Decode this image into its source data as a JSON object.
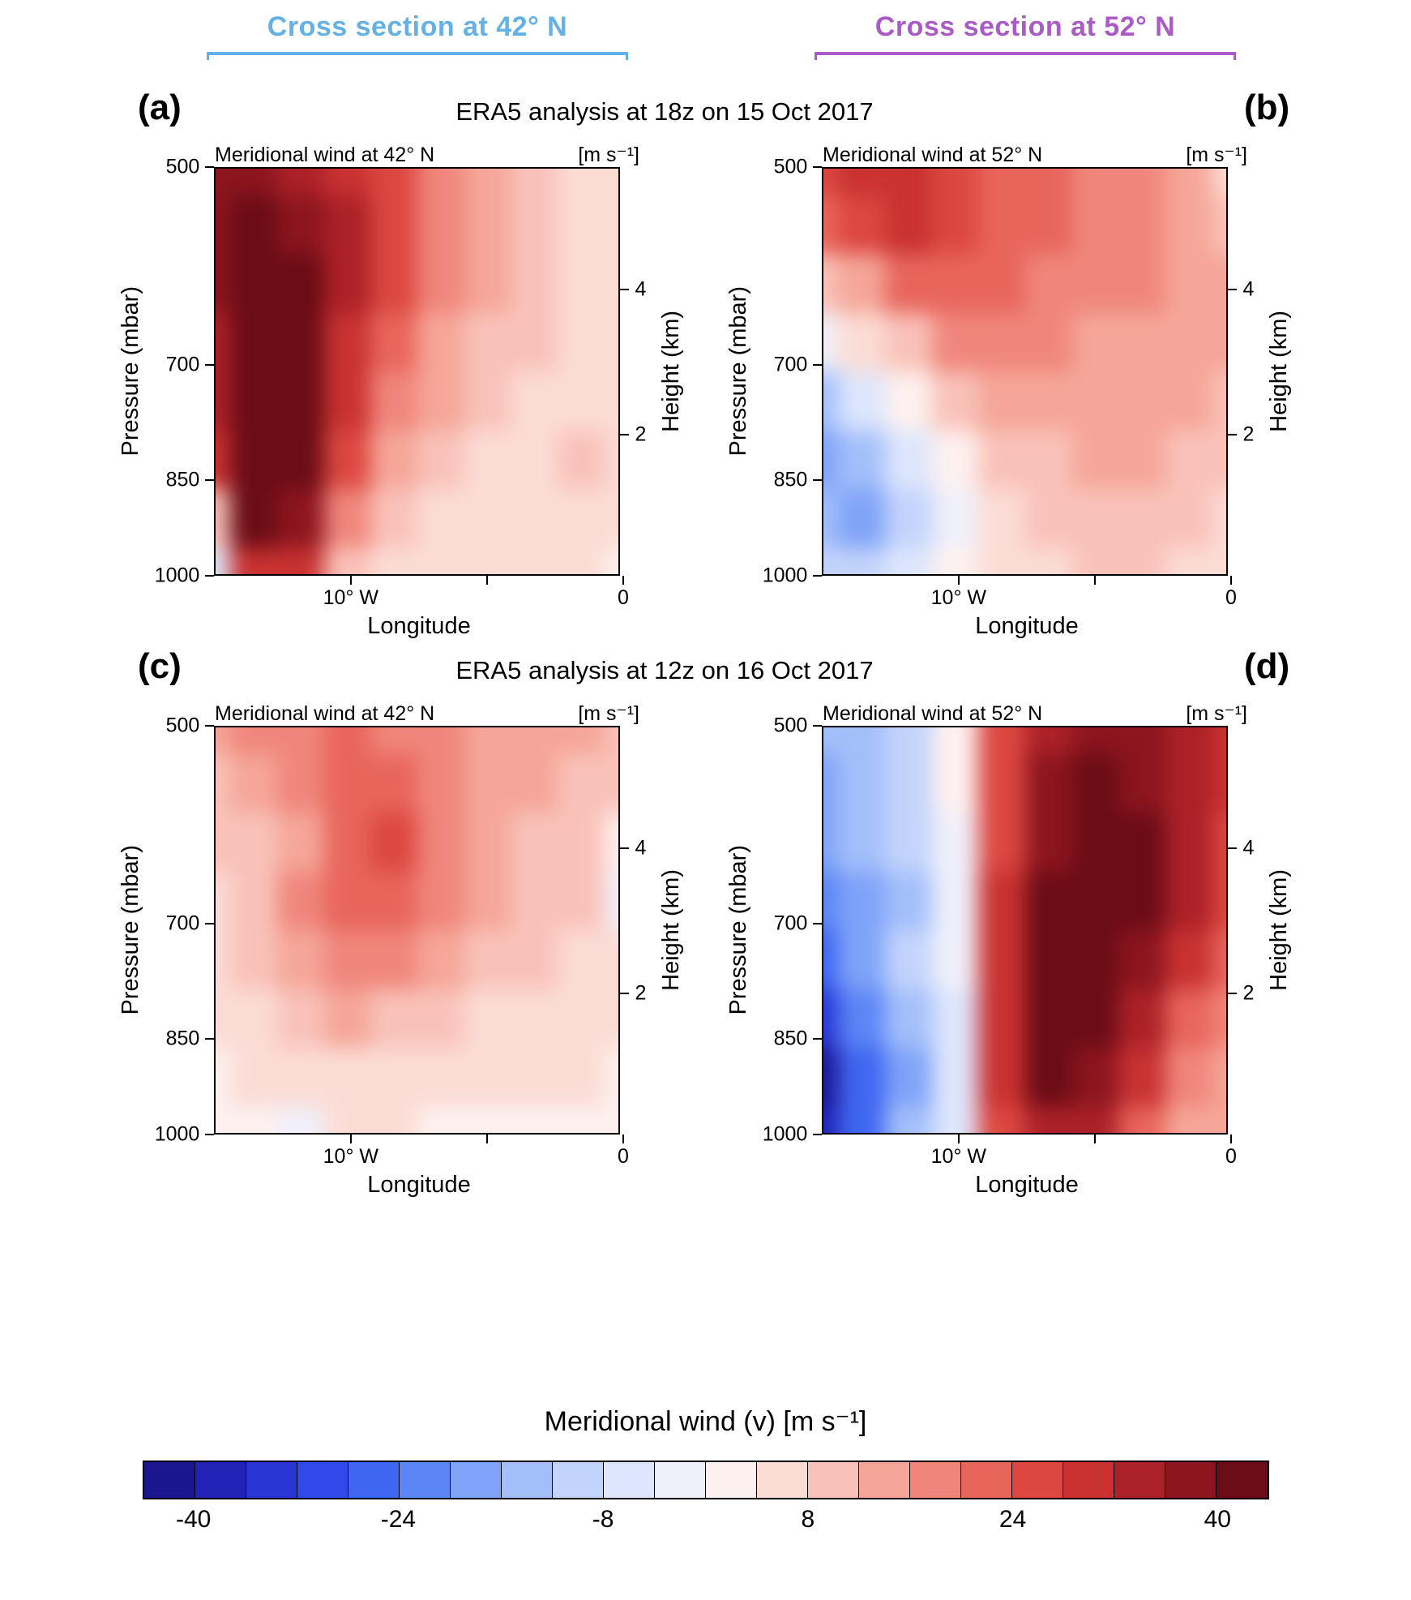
{
  "header": {
    "left": {
      "label": "Cross section at 42° N",
      "color": "#63b1e5"
    },
    "right": {
      "label": "Cross section at 52° N",
      "color": "#ab5bc6"
    }
  },
  "chart_data": [
    {
      "type": "heatmap",
      "panel_label": "(a)",
      "row_title": "ERA5 analysis at 18z on 15 Oct 2017",
      "subtitle": "Meridional wind at 42° N",
      "units": "[m s⁻¹]",
      "axes": {
        "left": {
          "label": "Pressure (mbar)",
          "ticks": [
            "500",
            "700",
            "850",
            "1000"
          ],
          "pos": [
            0,
            0.485,
            0.765,
            1
          ]
        },
        "right": {
          "label": "Height (km)",
          "ticks": [
            "4",
            "2"
          ],
          "pos": [
            0.3,
            0.655
          ]
        },
        "bottom": {
          "label": "Longitude",
          "ticks": [
            "10° W",
            "0"
          ],
          "pos": [
            0.333,
            1
          ],
          "minor": [
            0.667
          ]
        }
      },
      "value_range": [
        -44,
        44
      ],
      "grid": [
        [
          36,
          38,
          34,
          30,
          24,
          18,
          12,
          8,
          6,
          4
        ],
        [
          38,
          42,
          38,
          32,
          26,
          18,
          12,
          8,
          6,
          4
        ],
        [
          36,
          44,
          40,
          32,
          24,
          16,
          12,
          8,
          6,
          6
        ],
        [
          34,
          46,
          42,
          30,
          22,
          14,
          10,
          8,
          6,
          6
        ],
        [
          32,
          46,
          42,
          28,
          18,
          12,
          8,
          6,
          6,
          6
        ],
        [
          28,
          44,
          40,
          24,
          12,
          8,
          6,
          6,
          8,
          6
        ],
        [
          10,
          40,
          36,
          16,
          8,
          6,
          4,
          6,
          6,
          4
        ],
        [
          -6,
          30,
          28,
          10,
          6,
          4,
          4,
          4,
          4,
          2
        ]
      ]
    },
    {
      "type": "heatmap",
      "panel_label": "(b)",
      "row_title": "ERA5 analysis at 18z on 15 Oct 2017",
      "subtitle": "Meridional wind at 52° N",
      "units": "[m s⁻¹]",
      "axes": {
        "left": {
          "label": "Pressure (mbar)",
          "ticks": [
            "500",
            "700",
            "850",
            "1000"
          ],
          "pos": [
            0,
            0.485,
            0.765,
            1
          ]
        },
        "right": {
          "label": "Height (km)",
          "ticks": [
            "4",
            "2"
          ],
          "pos": [
            0.3,
            0.655
          ]
        },
        "bottom": {
          "label": "Longitude",
          "ticks": [
            "10° W",
            "0"
          ],
          "pos": [
            0.333,
            1
          ],
          "minor": [
            0.667
          ]
        }
      },
      "value_range": [
        -44,
        44
      ],
      "grid": [
        [
          24,
          28,
          30,
          26,
          22,
          20,
          18,
          16,
          12,
          6
        ],
        [
          20,
          26,
          30,
          26,
          22,
          20,
          18,
          16,
          14,
          10
        ],
        [
          8,
          14,
          20,
          22,
          20,
          18,
          16,
          16,
          14,
          12
        ],
        [
          -4,
          4,
          10,
          16,
          18,
          16,
          14,
          14,
          14,
          12
        ],
        [
          -14,
          -8,
          0,
          8,
          12,
          14,
          12,
          12,
          12,
          10
        ],
        [
          -18,
          -16,
          -6,
          2,
          8,
          10,
          12,
          12,
          10,
          8
        ],
        [
          -16,
          -18,
          -10,
          -2,
          4,
          8,
          10,
          10,
          8,
          6
        ],
        [
          -10,
          -12,
          -6,
          0,
          4,
          6,
          8,
          8,
          6,
          6
        ]
      ]
    },
    {
      "type": "heatmap",
      "panel_label": "(c)",
      "row_title": "ERA5 analysis at 12z on 16 Oct 2017",
      "subtitle": "Meridional wind at 42° N",
      "units": "[m s⁻¹]",
      "axes": {
        "left": {
          "label": "Pressure (mbar)",
          "ticks": [
            "500",
            "700",
            "850",
            "1000"
          ],
          "pos": [
            0,
            0.485,
            0.765,
            1
          ]
        },
        "right": {
          "label": "Height (km)",
          "ticks": [
            "4",
            "2"
          ],
          "pos": [
            0.3,
            0.655
          ]
        },
        "bottom": {
          "label": "Longitude",
          "ticks": [
            "10° W",
            "0"
          ],
          "pos": [
            0.333,
            1
          ],
          "minor": [
            0.667
          ]
        }
      },
      "value_range": [
        -44,
        44
      ],
      "grid": [
        [
          14,
          16,
          18,
          20,
          18,
          16,
          14,
          12,
          12,
          10
        ],
        [
          10,
          12,
          16,
          22,
          20,
          16,
          14,
          12,
          10,
          8
        ],
        [
          8,
          10,
          14,
          22,
          24,
          18,
          14,
          10,
          8,
          2
        ],
        [
          6,
          10,
          16,
          22,
          20,
          16,
          12,
          10,
          8,
          -2
        ],
        [
          6,
          8,
          12,
          18,
          16,
          12,
          10,
          8,
          6,
          4
        ],
        [
          4,
          6,
          8,
          12,
          10,
          8,
          6,
          6,
          4,
          4
        ],
        [
          2,
          4,
          6,
          6,
          6,
          4,
          4,
          4,
          4,
          2
        ],
        [
          2,
          2,
          -4,
          4,
          4,
          2,
          2,
          2,
          2,
          2
        ]
      ]
    },
    {
      "type": "heatmap",
      "panel_label": "(d)",
      "row_title": "ERA5 analysis at 12z on 16 Oct 2017",
      "subtitle": "Meridional wind at 52° N",
      "units": "[m s⁻¹]",
      "axes": {
        "left": {
          "label": "Pressure (mbar)",
          "ticks": [
            "500",
            "700",
            "850",
            "1000"
          ],
          "pos": [
            0,
            0.485,
            0.765,
            1
          ]
        },
        "right": {
          "label": "Height (km)",
          "ticks": [
            "4",
            "2"
          ],
          "pos": [
            0.3,
            0.655
          ]
        },
        "bottom": {
          "label": "Longitude",
          "ticks": [
            "10° W",
            "0"
          ],
          "pos": [
            0.333,
            1
          ],
          "minor": [
            0.667
          ]
        }
      },
      "value_range": [
        -44,
        44
      ],
      "grid": [
        [
          -16,
          -14,
          -10,
          2,
          24,
          34,
          38,
          36,
          32,
          28
        ],
        [
          -18,
          -16,
          -12,
          0,
          26,
          36,
          40,
          38,
          34,
          28
        ],
        [
          -20,
          -16,
          -12,
          -2,
          26,
          38,
          42,
          40,
          34,
          26
        ],
        [
          -22,
          -18,
          -14,
          -2,
          28,
          40,
          44,
          40,
          32,
          24
        ],
        [
          -26,
          -20,
          -12,
          -4,
          30,
          42,
          44,
          38,
          28,
          22
        ],
        [
          -34,
          -24,
          -14,
          -6,
          30,
          42,
          42,
          34,
          22,
          18
        ],
        [
          -42,
          -28,
          -18,
          -8,
          28,
          40,
          38,
          28,
          16,
          14
        ],
        [
          -40,
          -26,
          -16,
          -6,
          24,
          34,
          32,
          22,
          14,
          12
        ]
      ]
    }
  ],
  "colorbar": {
    "label": "Meridional wind (v) [m s⁻¹]",
    "min": -44,
    "max": 44,
    "step": 4,
    "tick_values": [
      -40,
      -24,
      -8,
      8,
      24,
      40
    ],
    "tick_labels": [
      "-40",
      "-24",
      "-8",
      "8",
      "24",
      "40"
    ],
    "colors": [
      "#1a1690",
      "#2023b5",
      "#2936d6",
      "#3049e8",
      "#3f66f0",
      "#5c85f5",
      "#7fa3f8",
      "#a3bffa",
      "#c3d4fb",
      "#dde6fc",
      "#f0f0fa",
      "#fdf1ef",
      "#fbdcd5",
      "#f9c2b9",
      "#f5a698",
      "#f0867b",
      "#e8655c",
      "#dc4741",
      "#c93231",
      "#ac2127",
      "#8c151e",
      "#6b0c16"
    ]
  }
}
